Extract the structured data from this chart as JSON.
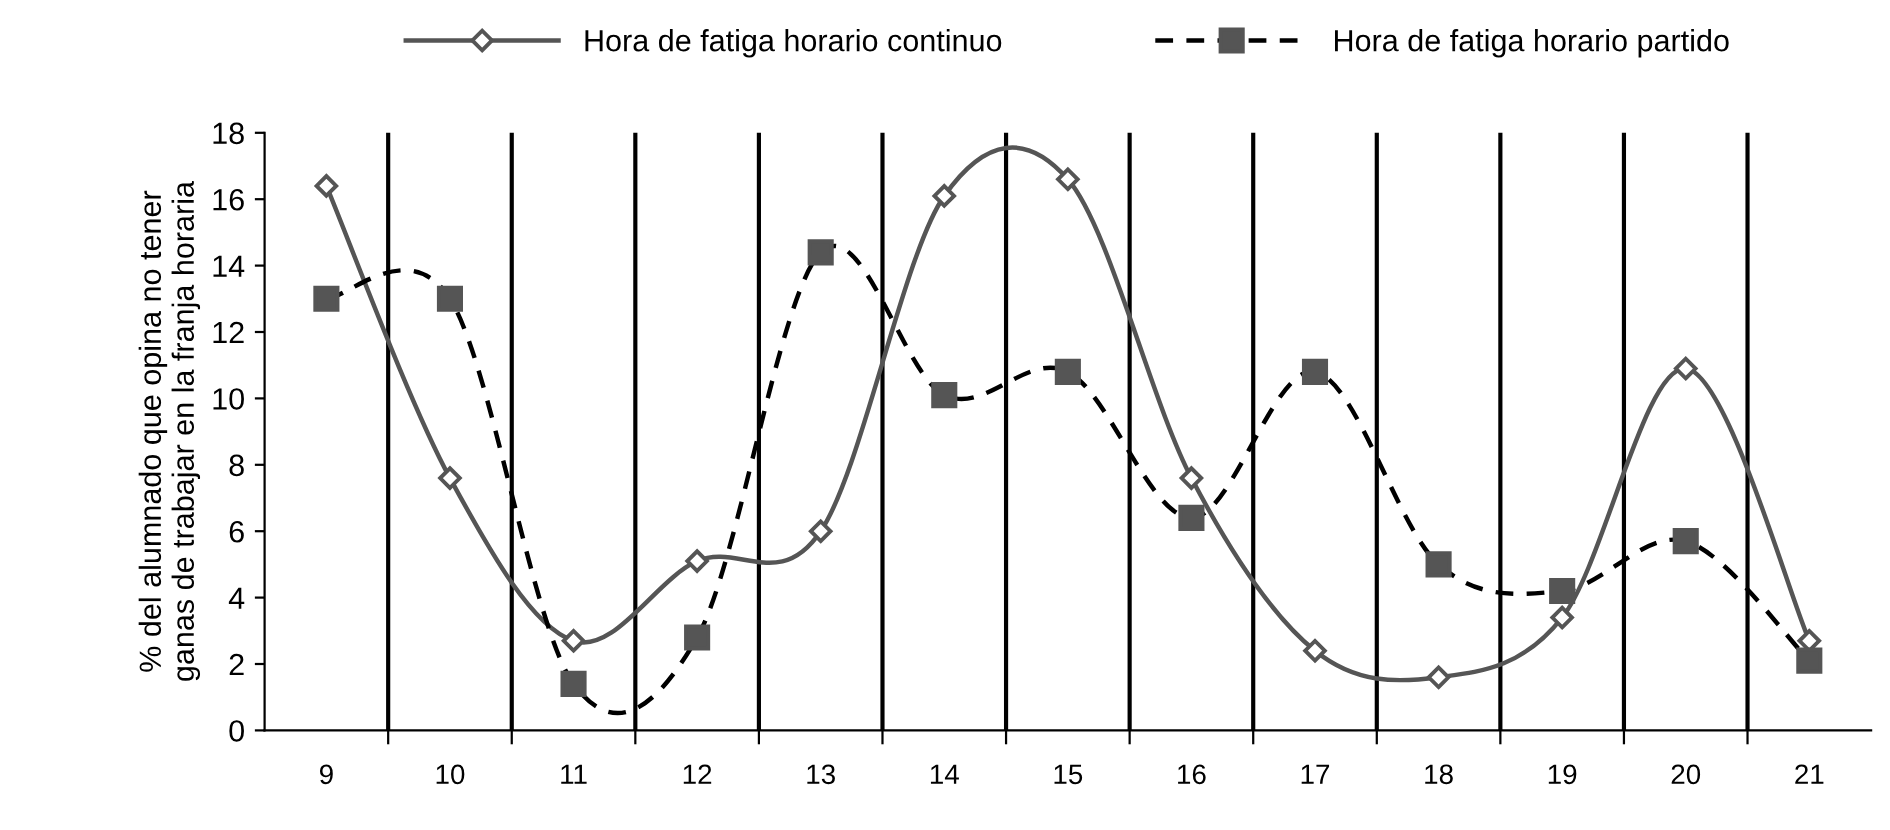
{
  "chart_data": {
    "type": "line",
    "ylabel": "% del alumnado que opina no tener\nganas de trabajar en la franja horaria",
    "categories": [
      "9",
      "10",
      "11",
      "12",
      "13",
      "14",
      "15",
      "16",
      "17",
      "18",
      "19",
      "20",
      "21"
    ],
    "series": [
      {
        "name": "Hora de fatiga horario continuo",
        "color": "#555555",
        "marker": "diamond",
        "line_style": "solid",
        "values": [
          16.4,
          7.6,
          2.7,
          5.1,
          6.0,
          16.1,
          16.6,
          7.6,
          2.4,
          1.6,
          3.4,
          10.9,
          2.7
        ]
      },
      {
        "name": "Hora de fatiga horario partido",
        "color": "#000000",
        "marker": "square",
        "line_style": "dashed",
        "values": [
          13.0,
          13.0,
          1.4,
          2.8,
          14.4,
          10.1,
          10.8,
          6.4,
          10.8,
          5.0,
          4.2,
          5.7,
          2.1
        ]
      }
    ],
    "ylim": [
      0,
      18
    ],
    "yticks": [
      0,
      2,
      4,
      6,
      8,
      10,
      12,
      14,
      16,
      18
    ],
    "grid": "x",
    "legend": "top"
  }
}
